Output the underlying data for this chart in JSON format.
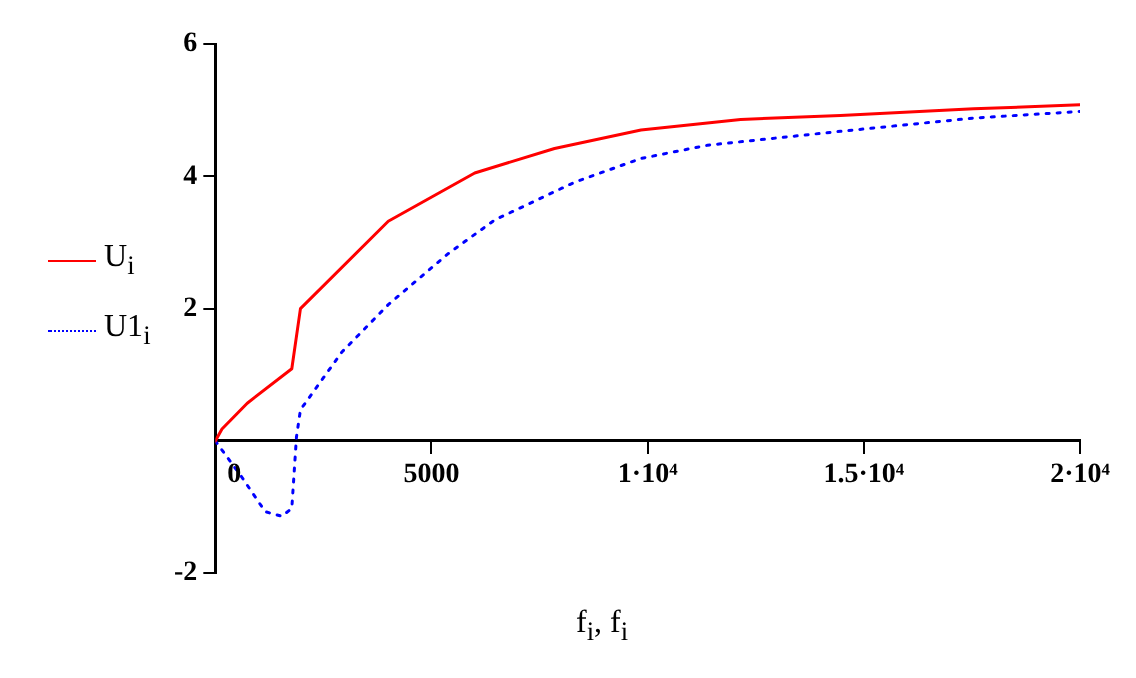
{
  "chart_data": {
    "type": "line",
    "xlabel": "f$_{i}$, f$_{i}$",
    "xlim": [
      0,
      20000
    ],
    "xticks": [
      0,
      5000,
      {
        "value": 10000,
        "label": "1·10⁴"
      },
      {
        "value": 15000,
        "label": "1.5·10⁴"
      },
      {
        "value": 20000,
        "label": "2·10⁴"
      }
    ],
    "ylim": [
      -2,
      6
    ],
    "yticks": [
      -2,
      2,
      4,
      6
    ],
    "grid": false,
    "legend": "left",
    "marker": "none",
    "series": [
      {
        "name": "U$_{i}$",
        "color": "#ff0000",
        "line_style": "solid",
        "x": [
          0,
          154,
          738,
          1769,
          1969,
          4000,
          6000,
          7846,
          9846,
          12150,
          14460,
          17540,
          20000
        ],
        "values": [
          0,
          0.18,
          0.57,
          1.09,
          2.0,
          3.32,
          4.05,
          4.42,
          4.7,
          4.86,
          4.92,
          5.02,
          5.08
        ]
      },
      {
        "name": "U1$_{i}$",
        "color": "#0000ff",
        "line_style": "dotted",
        "x": [
          0,
          615,
          1154,
          1538,
          1769,
          1877,
          1969,
          2923,
          4000,
          5385,
          6462,
          8308,
          9846,
          11385,
          14460,
          17540,
          20000
        ],
        "values": [
          0,
          -0.55,
          -1.07,
          -1.14,
          -1.02,
          0.06,
          0.47,
          1.34,
          2.06,
          2.83,
          3.34,
          3.91,
          4.27,
          4.47,
          4.68,
          4.88,
          4.98
        ]
      }
    ]
  }
}
